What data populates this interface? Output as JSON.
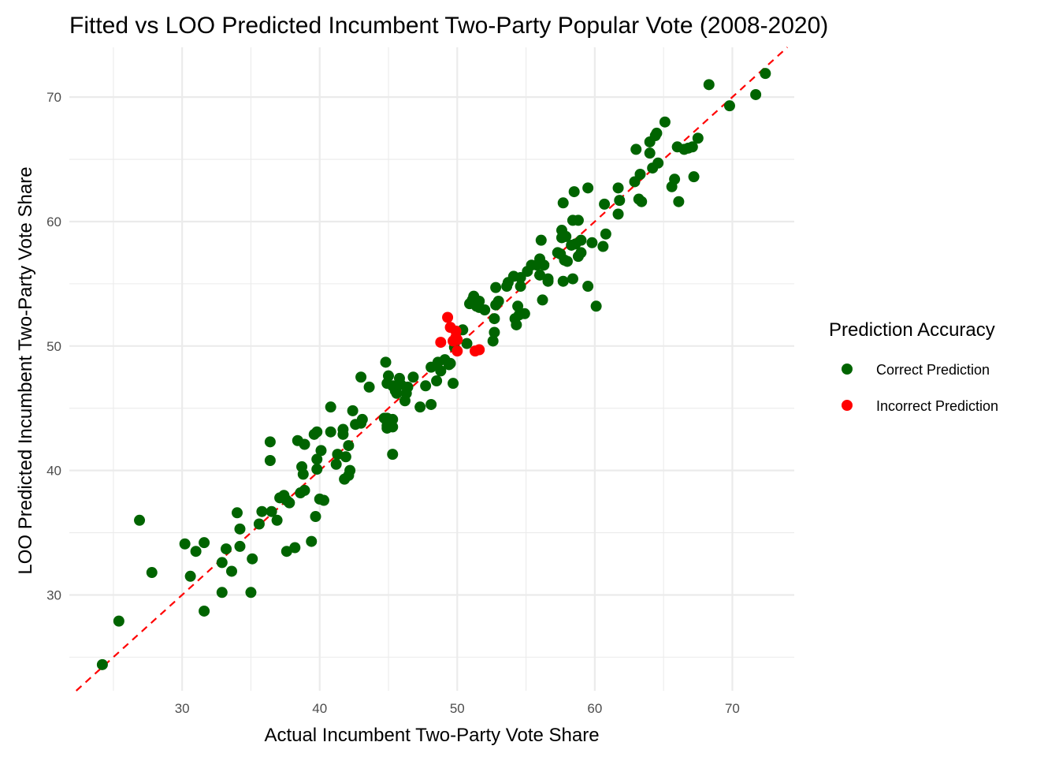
{
  "chart_data": {
    "type": "scatter",
    "title": "Fitted vs LOO Predicted Incumbent Two-Party Popular Vote (2008-2020)",
    "xlabel": "Actual Incumbent Two-Party Vote Share",
    "ylabel": "LOO Predicted Incumbent Two-Party Vote Share",
    "xlim": [
      21.8,
      74.5
    ],
    "ylim": [
      22.3,
      74.0
    ],
    "x_ticks": [
      30,
      40,
      50,
      60,
      70
    ],
    "y_ticks": [
      30,
      40,
      50,
      60,
      70
    ],
    "grid": true,
    "reference_line": {
      "type": "identity",
      "color": "#ff0000",
      "style": "dashed"
    },
    "legend": {
      "title": "Prediction Accuracy",
      "placement": "right",
      "entries": [
        {
          "label": "Correct Prediction",
          "color": "#006400"
        },
        {
          "label": "Incorrect Prediction",
          "color": "#ff0000"
        }
      ]
    },
    "series": [
      {
        "name": "Correct Prediction",
        "color": "#006400",
        "points": [
          [
            24.2,
            24.4
          ],
          [
            25.4,
            27.9
          ],
          [
            26.9,
            36.0
          ],
          [
            27.8,
            31.8
          ],
          [
            30.2,
            34.1
          ],
          [
            30.6,
            31.5
          ],
          [
            31.0,
            33.5
          ],
          [
            31.6,
            34.2
          ],
          [
            31.6,
            28.7
          ],
          [
            32.9,
            32.6
          ],
          [
            33.2,
            33.7
          ],
          [
            33.6,
            31.9
          ],
          [
            34.0,
            36.6
          ],
          [
            34.2,
            35.3
          ],
          [
            34.2,
            33.9
          ],
          [
            32.9,
            30.2
          ],
          [
            35.0,
            30.2
          ],
          [
            35.1,
            32.9
          ],
          [
            35.6,
            35.7
          ],
          [
            35.8,
            36.7
          ],
          [
            36.4,
            40.8
          ],
          [
            36.4,
            42.3
          ],
          [
            36.5,
            36.7
          ],
          [
            36.9,
            36.0
          ],
          [
            37.1,
            37.8
          ],
          [
            37.4,
            38.0
          ],
          [
            37.6,
            37.6
          ],
          [
            37.6,
            33.5
          ],
          [
            37.8,
            37.4
          ],
          [
            38.2,
            33.8
          ],
          [
            38.4,
            42.4
          ],
          [
            38.6,
            38.2
          ],
          [
            38.7,
            40.3
          ],
          [
            38.8,
            39.7
          ],
          [
            38.9,
            42.1
          ],
          [
            38.9,
            38.4
          ],
          [
            39.4,
            34.3
          ],
          [
            39.6,
            42.9
          ],
          [
            39.7,
            36.3
          ],
          [
            39.8,
            43.1
          ],
          [
            39.8,
            40.1
          ],
          [
            39.8,
            40.9
          ],
          [
            40.0,
            37.7
          ],
          [
            40.1,
            41.6
          ],
          [
            40.3,
            37.6
          ],
          [
            40.8,
            45.1
          ],
          [
            40.8,
            43.1
          ],
          [
            41.2,
            40.5
          ],
          [
            41.3,
            41.3
          ],
          [
            41.7,
            43.3
          ],
          [
            41.7,
            42.9
          ],
          [
            41.8,
            39.3
          ],
          [
            41.9,
            41.1
          ],
          [
            42.1,
            39.6
          ],
          [
            42.1,
            42.0
          ],
          [
            42.2,
            40.0
          ],
          [
            42.4,
            44.8
          ],
          [
            42.6,
            43.7
          ],
          [
            43.0,
            47.5
          ],
          [
            43.0,
            43.8
          ],
          [
            43.1,
            44.1
          ],
          [
            43.6,
            46.7
          ],
          [
            44.8,
            48.7
          ],
          [
            44.7,
            44.2
          ],
          [
            44.9,
            43.6
          ],
          [
            44.9,
            44.2
          ],
          [
            44.9,
            43.4
          ],
          [
            44.9,
            47.0
          ],
          [
            45.0,
            47.6
          ],
          [
            45.3,
            46.8
          ],
          [
            45.3,
            44.1
          ],
          [
            45.3,
            43.5
          ],
          [
            45.3,
            41.3
          ],
          [
            45.5,
            46.4
          ],
          [
            45.6,
            46.2
          ],
          [
            45.8,
            47.4
          ],
          [
            45.9,
            46.9
          ],
          [
            46.2,
            45.6
          ],
          [
            46.3,
            46.2
          ],
          [
            46.4,
            46.7
          ],
          [
            46.8,
            47.5
          ],
          [
            47.3,
            45.1
          ],
          [
            47.7,
            46.8
          ],
          [
            48.1,
            48.3
          ],
          [
            48.1,
            45.3
          ],
          [
            48.5,
            47.2
          ],
          [
            48.6,
            48.7
          ],
          [
            48.8,
            48.0
          ],
          [
            49.1,
            48.9
          ],
          [
            49.4,
            48.5
          ],
          [
            49.5,
            48.6
          ],
          [
            49.7,
            47.0
          ],
          [
            49.8,
            49.9
          ],
          [
            50.4,
            51.3
          ],
          [
            50.7,
            50.2
          ],
          [
            50.9,
            53.4
          ],
          [
            51.1,
            53.7
          ],
          [
            51.2,
            54.0
          ],
          [
            51.4,
            53.2
          ],
          [
            51.6,
            53.1
          ],
          [
            51.6,
            53.6
          ],
          [
            52.0,
            52.9
          ],
          [
            52.6,
            50.4
          ],
          [
            52.7,
            52.2
          ],
          [
            52.7,
            51.1
          ],
          [
            52.8,
            54.7
          ],
          [
            52.8,
            53.3
          ],
          [
            53.0,
            53.6
          ],
          [
            53.6,
            54.8
          ],
          [
            53.7,
            55.1
          ],
          [
            54.1,
            55.6
          ],
          [
            54.2,
            52.2
          ],
          [
            54.3,
            51.7
          ],
          [
            54.4,
            53.2
          ],
          [
            54.5,
            52.5
          ],
          [
            54.6,
            55.5
          ],
          [
            54.6,
            54.8
          ],
          [
            54.9,
            52.6
          ],
          [
            55.1,
            56.0
          ],
          [
            55.4,
            56.5
          ],
          [
            55.8,
            56.5
          ],
          [
            56.0,
            57.0
          ],
          [
            56.0,
            55.7
          ],
          [
            56.1,
            58.5
          ],
          [
            56.2,
            53.7
          ],
          [
            56.3,
            56.5
          ],
          [
            56.6,
            55.4
          ],
          [
            56.6,
            55.2
          ],
          [
            57.3,
            57.5
          ],
          [
            57.5,
            57.4
          ],
          [
            57.6,
            59.3
          ],
          [
            57.6,
            58.7
          ],
          [
            57.7,
            61.5
          ],
          [
            57.7,
            55.2
          ],
          [
            57.8,
            56.9
          ],
          [
            57.9,
            58.8
          ],
          [
            58.0,
            56.8
          ],
          [
            58.3,
            58.1
          ],
          [
            58.4,
            60.1
          ],
          [
            58.4,
            55.4
          ],
          [
            58.5,
            62.4
          ],
          [
            58.6,
            58.2
          ],
          [
            58.8,
            60.1
          ],
          [
            58.8,
            57.2
          ],
          [
            59.0,
            57.5
          ],
          [
            59.0,
            58.5
          ],
          [
            59.5,
            62.7
          ],
          [
            59.5,
            54.8
          ],
          [
            59.8,
            58.3
          ],
          [
            60.1,
            53.2
          ],
          [
            60.6,
            58.0
          ],
          [
            60.7,
            61.4
          ],
          [
            60.8,
            59.0
          ],
          [
            61.7,
            62.7
          ],
          [
            61.7,
            60.6
          ],
          [
            61.8,
            61.7
          ],
          [
            62.9,
            63.2
          ],
          [
            63.0,
            65.8
          ],
          [
            63.2,
            61.8
          ],
          [
            63.3,
            63.8
          ],
          [
            63.4,
            61.6
          ],
          [
            64.0,
            66.4
          ],
          [
            64.0,
            65.5
          ],
          [
            64.2,
            64.3
          ],
          [
            64.4,
            66.9
          ],
          [
            64.5,
            67.1
          ],
          [
            64.6,
            64.7
          ],
          [
            65.1,
            68.0
          ],
          [
            65.6,
            62.8
          ],
          [
            65.8,
            63.4
          ],
          [
            66.0,
            66.0
          ],
          [
            66.1,
            61.6
          ],
          [
            66.5,
            65.8
          ],
          [
            66.8,
            65.9
          ],
          [
            67.1,
            66.0
          ],
          [
            67.2,
            63.6
          ],
          [
            67.5,
            66.7
          ],
          [
            68.3,
            71.0
          ],
          [
            69.8,
            69.3
          ],
          [
            71.7,
            70.2
          ],
          [
            72.4,
            71.9
          ]
        ]
      },
      {
        "name": "Incorrect Prediction",
        "color": "#ff0000",
        "points": [
          [
            48.8,
            50.3
          ],
          [
            49.3,
            52.3
          ],
          [
            49.5,
            51.5
          ],
          [
            49.7,
            50.4
          ],
          [
            49.9,
            51.2
          ],
          [
            49.9,
            50.7
          ],
          [
            50.0,
            50.5
          ],
          [
            50.0,
            49.6
          ],
          [
            51.3,
            49.6
          ],
          [
            51.6,
            49.7
          ]
        ]
      }
    ]
  }
}
